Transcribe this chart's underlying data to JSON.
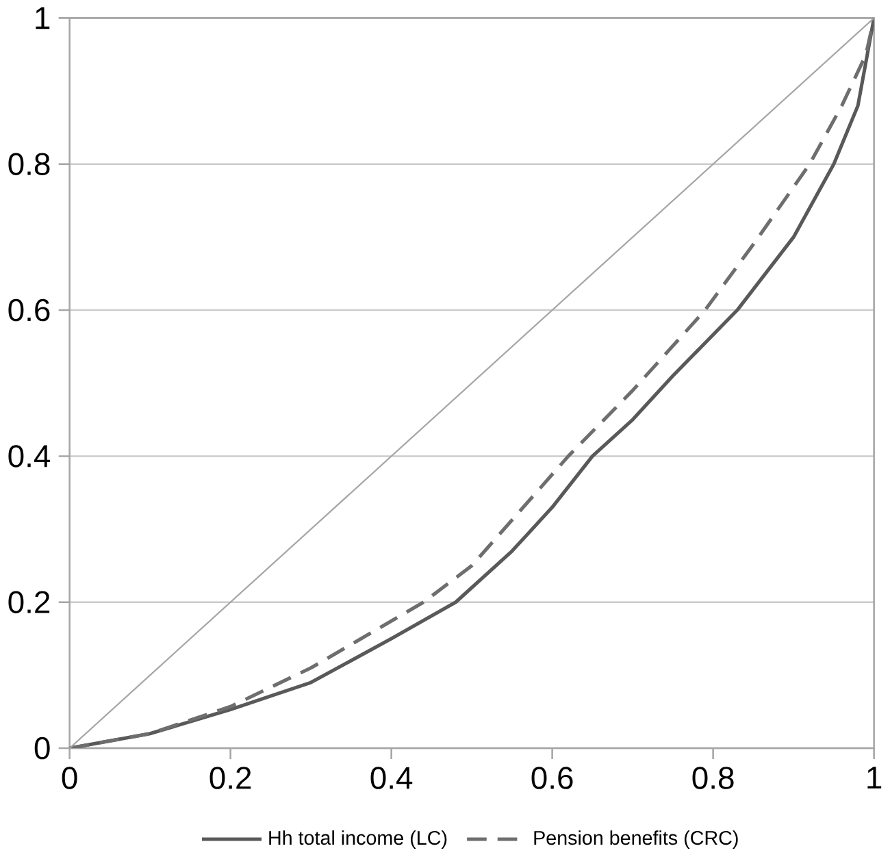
{
  "chart_data": {
    "type": "line",
    "xlim": [
      0,
      1
    ],
    "ylim": [
      0,
      1
    ],
    "xticks": [
      0,
      0.2,
      0.4,
      0.6,
      0.8,
      1
    ],
    "yticks": [
      0,
      0.2,
      0.4,
      0.6,
      0.8,
      1
    ],
    "grid": "y",
    "legend": "bottom",
    "series": [
      {
        "name": "Hh total income (LC)",
        "color": "#595959",
        "line_style": "solid",
        "x": [
          0,
          0.1,
          0.2,
          0.3,
          0.4,
          0.48,
          0.55,
          0.6,
          0.65,
          0.7,
          0.75,
          0.83,
          0.9,
          0.95,
          0.98,
          1
        ],
        "values": [
          0,
          0.02,
          0.053,
          0.09,
          0.15,
          0.2,
          0.27,
          0.33,
          0.4,
          0.45,
          0.51,
          0.6,
          0.7,
          0.8,
          0.88,
          1
        ]
      },
      {
        "name": "Pension benefits (CRC)",
        "color": "#6e6e6e",
        "line_style": "dashed",
        "x": [
          0,
          0.1,
          0.2,
          0.3,
          0.44,
          0.5,
          0.62,
          0.7,
          0.79,
          0.85,
          0.92,
          0.96,
          0.99,
          1
        ],
        "values": [
          0,
          0.02,
          0.057,
          0.11,
          0.2,
          0.25,
          0.4,
          0.49,
          0.6,
          0.69,
          0.8,
          0.88,
          0.95,
          1
        ]
      },
      {
        "color": "#a6a6a6",
        "line_style": "solid",
        "x": [
          0,
          1
        ],
        "values": [
          0,
          1
        ]
      }
    ]
  }
}
